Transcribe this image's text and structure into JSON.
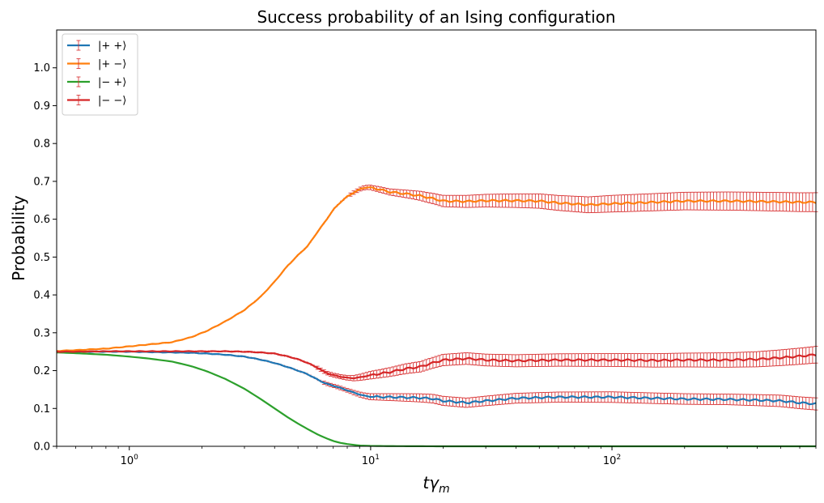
{
  "chart_data": {
    "type": "line",
    "title": "Success probability of an Ising configuration",
    "xlabel_main": "tγ",
    "xlabel_sub": "m",
    "ylabel": "Probability",
    "xscale": "log",
    "xlim": [
      0.5,
      700
    ],
    "ylim": [
      0,
      1.1
    ],
    "yticks": [
      0.0,
      0.1,
      0.2,
      0.3,
      0.4,
      0.5,
      0.6,
      0.7,
      0.8,
      0.9,
      1.0
    ],
    "ytick_labels": [
      "0.0",
      "0.1",
      "0.2",
      "0.3",
      "0.4",
      "0.5",
      "0.6",
      "0.7",
      "0.8",
      "0.9",
      "1.0"
    ],
    "xticks": [
      1,
      10,
      100
    ],
    "xtick_labels": [
      {
        "base": "10",
        "exp": "0"
      },
      {
        "base": "10",
        "exp": "1"
      },
      {
        "base": "10",
        "exp": "2"
      }
    ],
    "errorbar_color": "#d62728",
    "legend_position": "upper-left",
    "series": [
      {
        "name": "|+ +⟩",
        "color": "#1f77b4",
        "points": [
          [
            0.5,
            0.25
          ],
          [
            0.6,
            0.25
          ],
          [
            0.8,
            0.25
          ],
          [
            1.0,
            0.25
          ],
          [
            1.2,
            0.249
          ],
          [
            1.5,
            0.248
          ],
          [
            1.8,
            0.247
          ],
          [
            2.1,
            0.245
          ],
          [
            2.5,
            0.242
          ],
          [
            3.0,
            0.237
          ],
          [
            3.5,
            0.229
          ],
          [
            4.0,
            0.22
          ],
          [
            4.5,
            0.21
          ],
          [
            5.0,
            0.2
          ],
          [
            5.5,
            0.19
          ],
          [
            6.0,
            0.177
          ],
          [
            6.5,
            0.166
          ],
          [
            7.0,
            0.16
          ],
          [
            7.5,
            0.154
          ],
          [
            8.0,
            0.148
          ],
          [
            8.5,
            0.142
          ],
          [
            9.0,
            0.137
          ],
          [
            9.5,
            0.133
          ],
          [
            10,
            0.131
          ],
          [
            12,
            0.13
          ],
          [
            14,
            0.129
          ],
          [
            16,
            0.128
          ],
          [
            18,
            0.126
          ],
          [
            20,
            0.12
          ],
          [
            25,
            0.115
          ],
          [
            30,
            0.12
          ],
          [
            40,
            0.127
          ],
          [
            60,
            0.13
          ],
          [
            100,
            0.13
          ],
          [
            150,
            0.127
          ],
          [
            200,
            0.125
          ],
          [
            300,
            0.124
          ],
          [
            400,
            0.122
          ],
          [
            500,
            0.12
          ],
          [
            600,
            0.115
          ],
          [
            700,
            0.112
          ]
        ],
        "err": [
          [
            0.5,
            0.001
          ],
          [
            5,
            0.003
          ],
          [
            8,
            0.005
          ],
          [
            10,
            0.008
          ],
          [
            14,
            0.01
          ],
          [
            20,
            0.012
          ],
          [
            40,
            0.013
          ],
          [
            100,
            0.014
          ],
          [
            300,
            0.014
          ],
          [
            700,
            0.016
          ]
        ]
      },
      {
        "name": "|+ −⟩",
        "color": "#ff7f0e",
        "points": [
          [
            0.5,
            0.252
          ],
          [
            0.6,
            0.254
          ],
          [
            0.8,
            0.258
          ],
          [
            1.0,
            0.264
          ],
          [
            1.2,
            0.269
          ],
          [
            1.5,
            0.275
          ],
          [
            1.8,
            0.288
          ],
          [
            2.1,
            0.305
          ],
          [
            2.5,
            0.33
          ],
          [
            3.0,
            0.36
          ],
          [
            3.5,
            0.395
          ],
          [
            4.0,
            0.435
          ],
          [
            4.5,
            0.475
          ],
          [
            5.0,
            0.505
          ],
          [
            5.5,
            0.53
          ],
          [
            6.0,
            0.565
          ],
          [
            6.5,
            0.595
          ],
          [
            7.0,
            0.625
          ],
          [
            7.5,
            0.645
          ],
          [
            8.0,
            0.66
          ],
          [
            8.5,
            0.67
          ],
          [
            9.0,
            0.679
          ],
          [
            9.5,
            0.684
          ],
          [
            10,
            0.684
          ],
          [
            11,
            0.678
          ],
          [
            12,
            0.672
          ],
          [
            14,
            0.667
          ],
          [
            16,
            0.662
          ],
          [
            18,
            0.655
          ],
          [
            20,
            0.648
          ],
          [
            25,
            0.647
          ],
          [
            30,
            0.649
          ],
          [
            40,
            0.649
          ],
          [
            50,
            0.648
          ],
          [
            60,
            0.643
          ],
          [
            80,
            0.638
          ],
          [
            100,
            0.641
          ],
          [
            150,
            0.645
          ],
          [
            200,
            0.648
          ],
          [
            300,
            0.648
          ],
          [
            400,
            0.647
          ],
          [
            500,
            0.646
          ],
          [
            600,
            0.645
          ],
          [
            700,
            0.645
          ]
        ],
        "err": [
          [
            0.5,
            0.001
          ],
          [
            5,
            0.003
          ],
          [
            8,
            0.004
          ],
          [
            10,
            0.006
          ],
          [
            14,
            0.01
          ],
          [
            20,
            0.015
          ],
          [
            40,
            0.018
          ],
          [
            100,
            0.022
          ],
          [
            300,
            0.024
          ],
          [
            700,
            0.025
          ]
        ]
      },
      {
        "name": "|− +⟩",
        "color": "#2ca02c",
        "points": [
          [
            0.5,
            0.248
          ],
          [
            0.6,
            0.246
          ],
          [
            0.8,
            0.242
          ],
          [
            1.0,
            0.237
          ],
          [
            1.2,
            0.232
          ],
          [
            1.5,
            0.224
          ],
          [
            1.8,
            0.212
          ],
          [
            2.1,
            0.198
          ],
          [
            2.5,
            0.178
          ],
          [
            3.0,
            0.152
          ],
          [
            3.5,
            0.125
          ],
          [
            4.0,
            0.1
          ],
          [
            4.5,
            0.078
          ],
          [
            5.0,
            0.06
          ],
          [
            5.5,
            0.045
          ],
          [
            6.0,
            0.032
          ],
          [
            6.5,
            0.022
          ],
          [
            7.0,
            0.014
          ],
          [
            7.5,
            0.009
          ],
          [
            8.0,
            0.006
          ],
          [
            8.5,
            0.004
          ],
          [
            9.0,
            0.002
          ],
          [
            10,
            0.001
          ],
          [
            12,
            0.0005
          ],
          [
            20,
            0.0
          ],
          [
            50,
            0.0
          ],
          [
            100,
            0.0
          ],
          [
            200,
            0.0
          ],
          [
            400,
            0.0
          ],
          [
            700,
            0.0
          ]
        ],
        "err": [
          [
            0.5,
            0.001
          ],
          [
            5,
            0.001
          ],
          [
            10,
            0.0005
          ],
          [
            100,
            0.0003
          ],
          [
            700,
            0.0003
          ]
        ]
      },
      {
        "name": "|− −⟩",
        "color": "#d62728",
        "points": [
          [
            0.5,
            0.25
          ],
          [
            0.6,
            0.25
          ],
          [
            0.8,
            0.251
          ],
          [
            1.0,
            0.251
          ],
          [
            1.2,
            0.251
          ],
          [
            1.5,
            0.251
          ],
          [
            1.8,
            0.251
          ],
          [
            2.1,
            0.251
          ],
          [
            2.5,
            0.251
          ],
          [
            3.0,
            0.25
          ],
          [
            3.5,
            0.248
          ],
          [
            4.0,
            0.245
          ],
          [
            4.5,
            0.238
          ],
          [
            5.0,
            0.23
          ],
          [
            5.5,
            0.22
          ],
          [
            6.0,
            0.208
          ],
          [
            6.5,
            0.195
          ],
          [
            7.0,
            0.188
          ],
          [
            7.5,
            0.184
          ],
          [
            8.0,
            0.181
          ],
          [
            8.5,
            0.18
          ],
          [
            9.0,
            0.182
          ],
          [
            10,
            0.188
          ],
          [
            12,
            0.196
          ],
          [
            14,
            0.205
          ],
          [
            16,
            0.21
          ],
          [
            18,
            0.22
          ],
          [
            20,
            0.228
          ],
          [
            25,
            0.232
          ],
          [
            30,
            0.228
          ],
          [
            40,
            0.226
          ],
          [
            60,
            0.228
          ],
          [
            100,
            0.228
          ],
          [
            150,
            0.227
          ],
          [
            200,
            0.228
          ],
          [
            300,
            0.228
          ],
          [
            400,
            0.23
          ],
          [
            500,
            0.234
          ],
          [
            600,
            0.238
          ],
          [
            700,
            0.242
          ]
        ],
        "err": [
          [
            0.5,
            0.001
          ],
          [
            5,
            0.003
          ],
          [
            8,
            0.006
          ],
          [
            10,
            0.01
          ],
          [
            14,
            0.013
          ],
          [
            20,
            0.015
          ],
          [
            40,
            0.016
          ],
          [
            100,
            0.017
          ],
          [
            300,
            0.019
          ],
          [
            700,
            0.022
          ]
        ]
      }
    ]
  }
}
